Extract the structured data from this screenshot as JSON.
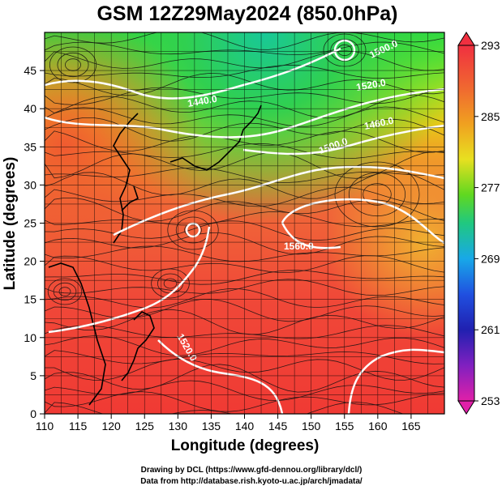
{
  "title": "GSM 12Z29May2024 (850.0hPa)",
  "xlabel": "Longitude (degrees)",
  "ylabel": "Latitude  (degrees)",
  "x_ticks": [
    "110",
    "115",
    "120",
    "125",
    "130",
    "135",
    "140",
    "145",
    "150",
    "155",
    "160",
    "165"
  ],
  "y_ticks": [
    "0",
    "5",
    "10",
    "15",
    "20",
    "25",
    "30",
    "35",
    "40",
    "45"
  ],
  "colorbar": {
    "ticks": [
      "293",
      "285",
      "277",
      "269",
      "261",
      "253"
    ],
    "colors": [
      "#f03040",
      "#f07830",
      "#f0c020",
      "#c8e020",
      "#40d820",
      "#20c8a0",
      "#1890f0",
      "#2020c0",
      "#8020c0",
      "#e020a0"
    ]
  },
  "contour_labels": [
    "1440.0",
    "1500.0",
    "1520.0",
    "1560.0",
    "1520.0",
    "1460.0",
    "1500.0"
  ],
  "credits": [
    "Drawing by DCL (https://www.gfd-dennou.org/library/dcl/)",
    "Data from http://database.rish.kyoto-u.ac.jp/arch/jmadata/"
  ],
  "chart_data": {
    "type": "heatmap",
    "title": "GSM 12Z29May2024 (850.0hPa)",
    "xlabel": "Longitude (degrees)",
    "ylabel": "Latitude  (degrees)",
    "xlim": [
      110,
      170
    ],
    "ylim": [
      0,
      50
    ],
    "colorbar_range": [
      253,
      293
    ],
    "colorbar_ticks": [
      293,
      285,
      277,
      269,
      261,
      253
    ],
    "overlays": [
      "streamlines",
      "geopotential height contours (white)",
      "coastlines"
    ],
    "contour_levels_labeled": [
      1440,
      1460,
      1500,
      1520,
      1560
    ]
  }
}
